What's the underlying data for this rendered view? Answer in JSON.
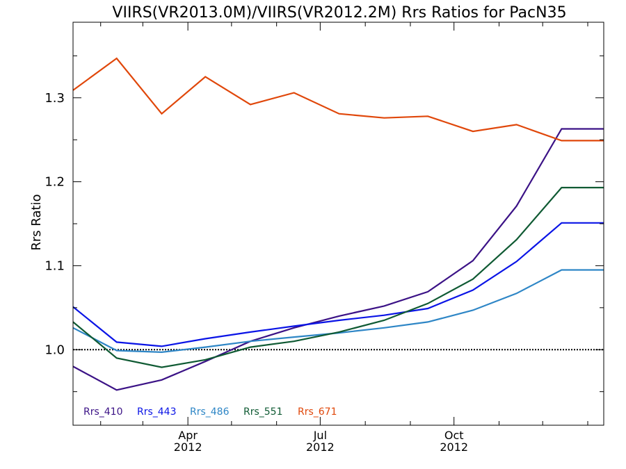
{
  "chart_data": {
    "type": "line",
    "title": "VIIRS(VR2013.0M)/VIIRS(VR2012.2M)  Rrs Ratios for PacN35",
    "xlabel": "",
    "ylabel": "Rrs Ratio",
    "x_unit": "days since 2012-01-01",
    "xlim": [
      12,
      377
    ],
    "ylim": [
      0.91,
      1.39
    ],
    "x_ticks": [
      {
        "value": 91,
        "month": "Apr",
        "year": "2012"
      },
      {
        "value": 182,
        "month": "Jul",
        "year": "2012"
      },
      {
        "value": 274,
        "month": "Oct",
        "year": "2012"
      }
    ],
    "y_ticks": [
      {
        "value": 1.0,
        "label": "1.0"
      },
      {
        "value": 1.1,
        "label": "1.1"
      },
      {
        "value": 1.2,
        "label": "1.2"
      },
      {
        "value": 1.3,
        "label": "1.3"
      }
    ],
    "reference_line": {
      "y": 1.0,
      "style": "dotted"
    },
    "x": [
      12,
      42,
      73,
      103,
      134,
      164,
      195,
      226,
      256,
      287,
      317,
      348,
      377
    ],
    "series": [
      {
        "name": "Rrs_410",
        "color": "#3b1286",
        "values": [
          0.98,
          0.952,
          0.964,
          0.986,
          1.01,
          1.026,
          1.04,
          1.052,
          1.069,
          1.106,
          1.171,
          1.263,
          1.263
        ]
      },
      {
        "name": "Rrs_443",
        "color": "#0a14e6",
        "values": [
          1.051,
          1.009,
          1.004,
          1.013,
          1.021,
          1.028,
          1.035,
          1.041,
          1.049,
          1.071,
          1.105,
          1.151,
          1.151
        ]
      },
      {
        "name": "Rrs_486",
        "color": "#2e86c6",
        "values": [
          1.026,
          0.999,
          0.997,
          1.003,
          1.01,
          1.015,
          1.02,
          1.026,
          1.033,
          1.047,
          1.067,
          1.095,
          1.095
        ]
      },
      {
        "name": "Rrs_551",
        "color": "#0f5a33",
        "values": [
          1.033,
          0.99,
          0.979,
          0.988,
          1.003,
          1.01,
          1.021,
          1.035,
          1.055,
          1.084,
          1.131,
          1.193,
          1.193
        ]
      },
      {
        "name": "Rrs_671",
        "color": "#e0470a",
        "values": [
          1.309,
          1.347,
          1.281,
          1.325,
          1.292,
          1.306,
          1.281,
          1.276,
          1.278,
          1.26,
          1.268,
          1.249,
          1.249
        ]
      }
    ],
    "legend": {
      "placement": "bottom-left",
      "orientation": "horizontal"
    },
    "grid": false
  }
}
